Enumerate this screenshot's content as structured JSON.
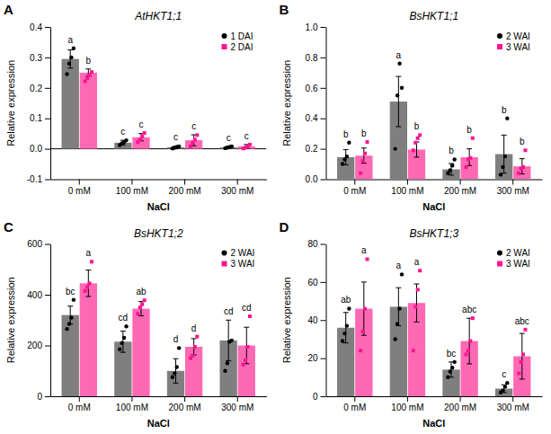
{
  "chart_data": [
    {
      "type": "bar",
      "title": "AtHKT1;1",
      "panel_label": "A",
      "xlabel": "NaCl",
      "ylabel": "Relative expression",
      "categories": [
        "0 mM",
        "100 mM",
        "200 mM",
        "300 mM"
      ],
      "series": [
        {
          "name": "1 DAI",
          "color": "#7f7f7f",
          "point_color": "#000000",
          "marker": "circle",
          "values": [
            0.295,
            0.02,
            0.005,
            0.005
          ],
          "errors": [
            0.03,
            0.008,
            0.004,
            0.003
          ],
          "points": [
            [
              0.245,
              0.28,
              0.3,
              0.33
            ],
            [
              0.012,
              0.018,
              0.022,
              0.028
            ],
            [
              0.001,
              0.003,
              0.006,
              0.008
            ],
            [
              0.002,
              0.004,
              0.006,
              0.008
            ]
          ],
          "letters": [
            "a",
            "c",
            "c",
            "c"
          ]
        },
        {
          "name": "2 DAI",
          "color": "#FF69B4",
          "point_color": "#FF1493",
          "marker": "square",
          "values": [
            0.25,
            0.038,
            0.028,
            0.008
          ],
          "errors": [
            0.012,
            0.012,
            0.018,
            0.006
          ],
          "points": [
            [
              0.222,
              0.232,
              0.242,
              0.252
            ],
            [
              0.022,
              0.03,
              0.04,
              0.052
            ],
            [
              0.008,
              0.02,
              0.03,
              0.045
            ],
            [
              0.001,
              0.004,
              0.008,
              0.014
            ]
          ],
          "letters": [
            "b",
            "c",
            "c",
            "c"
          ]
        }
      ],
      "reference_line": 0,
      "ylim": [
        -0.1,
        0.4
      ],
      "yticks": [
        -0.1,
        {
          "value": 0,
          "label": "0.0"
        },
        0.1,
        0.2,
        0.3,
        0.4
      ],
      "grid": false,
      "legend": "upper right"
    },
    {
      "type": "bar",
      "title": "BsHKT1;1",
      "panel_label": "B",
      "xlabel": "NaCl",
      "ylabel": "Relative expression",
      "categories": [
        "0 mM",
        "100 mM",
        "200 mM",
        "300 mM"
      ],
      "series": [
        {
          "name": "2 WAI",
          "color": "#7f7f7f",
          "point_color": "#000000",
          "marker": "circle",
          "values": [
            0.145,
            0.51,
            0.065,
            0.165
          ],
          "errors": [
            0.05,
            0.165,
            0.038,
            0.125
          ],
          "points": [
            [
              0.1,
              0.13,
              0.15,
              0.24
            ],
            [
              0.2,
              0.55,
              0.76,
              0.6
            ],
            [
              0.04,
              0.06,
              0.09,
              0.13
            ],
            [
              0.03,
              0.08,
              0.15,
              0.4
            ]
          ],
          "letters": [
            "b",
            "a",
            "b",
            "b"
          ]
        },
        {
          "name": "3 WAI",
          "color": "#FF69B4",
          "point_color": "#FF1493",
          "marker": "square",
          "values": [
            0.155,
            0.195,
            0.145,
            0.085
          ],
          "errors": [
            0.05,
            0.05,
            0.055,
            0.05
          ],
          "points": [
            [
              0.04,
              0.12,
              0.17,
              0.245
            ],
            [
              0.19,
              0.24,
              0.27,
              0.29
            ],
            [
              0.08,
              0.13,
              0.14,
              0.27
            ],
            [
              0.04,
              0.07,
              0.08,
              0.19
            ]
          ],
          "letters": [
            "b",
            "b",
            "b",
            "b"
          ]
        }
      ],
      "ylim": [
        0.0,
        1.0
      ],
      "yticks": [
        {
          "value": 0,
          "label": "0.0"
        },
        0.2,
        0.4,
        0.6,
        0.8,
        {
          "value": 1,
          "label": "1.0"
        }
      ],
      "grid": false,
      "legend": "upper right"
    },
    {
      "type": "bar",
      "title": "BsHKT1;2",
      "panel_label": "C",
      "xlabel": "NaCl",
      "ylabel": "Relative expression",
      "categories": [
        "0 mM",
        "100 mM",
        "200 mM",
        "300 mM"
      ],
      "series": [
        {
          "name": "2 WAI",
          "color": "#7f7f7f",
          "point_color": "#000000",
          "marker": "circle",
          "values": [
            320,
            215,
            100,
            220
          ],
          "errors": [
            35,
            42,
            48,
            80
          ],
          "points": [
            [
              265,
              285,
              310,
              380
            ],
            [
              185,
              210,
              230,
              275
            ],
            [
              75,
              90,
              115,
              190
            ],
            [
              100,
              130,
              215,
              220
            ]
          ],
          "letters": [
            "bc",
            "cd",
            "d",
            "cd"
          ]
        },
        {
          "name": "3 WAI",
          "color": "#FF69B4",
          "point_color": "#FF1493",
          "marker": "square",
          "values": [
            445,
            345,
            195,
            200
          ],
          "errors": [
            52,
            28,
            32,
            72
          ],
          "points": [
            [
              415,
              430,
              445,
              530
            ],
            [
              325,
              350,
              362,
              378
            ],
            [
              150,
              160,
              195,
              235
            ],
            [
              125,
              142,
              195,
              315
            ]
          ],
          "letters": [
            "a",
            "ab",
            "d",
            "cd"
          ]
        }
      ],
      "ylim": [
        0,
        600
      ],
      "yticks": [
        0,
        200,
        400,
        600
      ],
      "grid": false,
      "legend": "upper right"
    },
    {
      "type": "bar",
      "title": "BsHKT1;3",
      "panel_label": "D",
      "xlabel": "NaCl",
      "ylabel": "Relative expression",
      "categories": [
        "0 mM",
        "100 mM",
        "200 mM",
        "300 mM"
      ],
      "series": [
        {
          "name": "2 WAI",
          "color": "#7f7f7f",
          "point_color": "#000000",
          "marker": "circle",
          "values": [
            36,
            47,
            14,
            4
          ],
          "errors": [
            8,
            10,
            4,
            2
          ],
          "points": [
            [
              29,
              33,
              37,
              46
            ],
            [
              30,
              38,
              46,
              64
            ],
            [
              10,
              13,
              15,
              18
            ],
            [
              2,
              3,
              5,
              7
            ]
          ],
          "letters": [
            "ab",
            "a",
            "bc",
            "c"
          ]
        },
        {
          "name": "3 WAI",
          "color": "#FF69B4",
          "point_color": "#FF1493",
          "marker": "square",
          "values": [
            46,
            49,
            29,
            21
          ],
          "errors": [
            14,
            10,
            12,
            12
          ],
          "points": [
            [
              24,
              34,
              46,
              72
            ],
            [
              24,
              47,
              56,
              66
            ],
            [
              22,
              24,
              29,
              41
            ],
            [
              12,
              18,
              22,
              35
            ]
          ],
          "letters": [
            "a",
            "a",
            "abc",
            "abc"
          ]
        }
      ],
      "ylim": [
        0,
        80
      ],
      "yticks": [
        0,
        20,
        40,
        60,
        80
      ],
      "grid": false,
      "legend": "upper right"
    }
  ]
}
